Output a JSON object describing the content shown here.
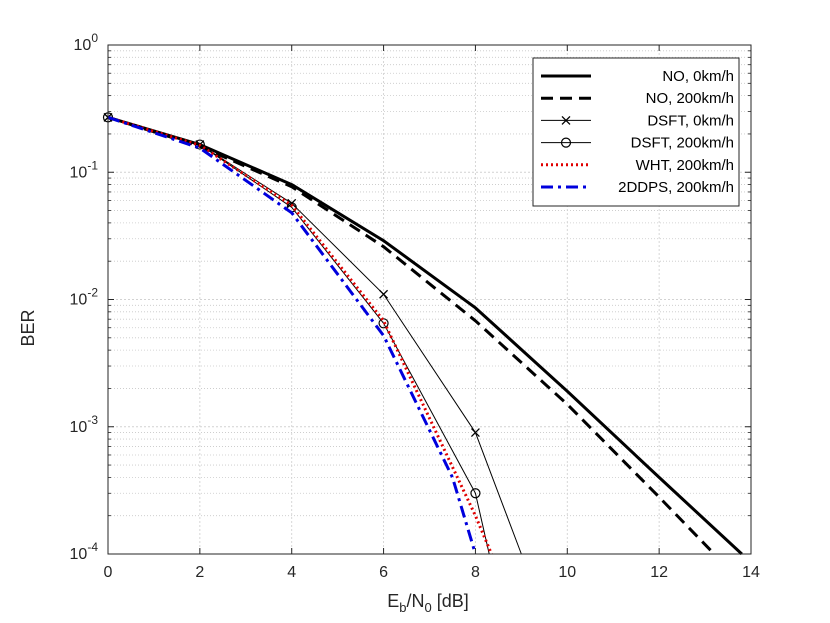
{
  "chart_data": {
    "type": "line",
    "yscale": "log",
    "xlabel": "E_b/N_0 [dB]",
    "xlabel_parts": {
      "e": "E",
      "b": "b",
      "slash_n": "/N",
      "zero": "0",
      "unit": " [dB]"
    },
    "ylabel": "BER",
    "xlim": [
      0,
      14
    ],
    "ylim": [
      0.0001,
      1
    ],
    "xticks": [
      0,
      2,
      4,
      6,
      8,
      10,
      12,
      14
    ],
    "xtick_labels": [
      "0",
      "2",
      "4",
      "6",
      "8",
      "10",
      "12",
      "14"
    ],
    "yticks": [
      1,
      0.1,
      0.01,
      0.001,
      0.0001
    ],
    "ytick_labels": [
      {
        "base": "10",
        "exp": "0"
      },
      {
        "base": "10",
        "exp": "-1"
      },
      {
        "base": "10",
        "exp": "-2"
      },
      {
        "base": "10",
        "exp": "-3"
      },
      {
        "base": "10",
        "exp": "-4"
      }
    ],
    "grid": true,
    "legend_position": "top-right",
    "series": [
      {
        "name": "NO, 0km/h",
        "color": "#000000",
        "style": "solid",
        "width": "thick",
        "marker": "none",
        "x": [
          0,
          2,
          4,
          6,
          8,
          10,
          12,
          13.8
        ],
        "y": [
          0.27,
          0.165,
          0.08,
          0.029,
          0.0086,
          0.0019,
          0.0004,
          0.0001
        ]
      },
      {
        "name": "NO, 200km/h",
        "color": "#000000",
        "style": "dashed",
        "width": "thick",
        "marker": "none",
        "x": [
          0,
          2,
          4,
          6,
          8,
          10,
          12,
          13.2
        ],
        "y": [
          0.27,
          0.16,
          0.077,
          0.026,
          0.0068,
          0.0015,
          0.00028,
          0.0001
        ]
      },
      {
        "name": "DSFT, 0km/h",
        "color": "#000000",
        "style": "solid",
        "width": "thin",
        "marker": "x",
        "x": [
          0,
          2,
          4,
          6,
          8,
          9
        ],
        "y": [
          0.27,
          0.165,
          0.057,
          0.011,
          0.0009,
          0.0001
        ]
      },
      {
        "name": "DSFT, 200km/h",
        "color": "#000000",
        "style": "solid",
        "width": "thin",
        "marker": "o",
        "x": [
          0,
          2,
          4,
          6,
          8,
          8.3
        ],
        "y": [
          0.27,
          0.165,
          0.053,
          0.0065,
          0.0003,
          0.0001
        ]
      },
      {
        "name": "WHT, 200km/h",
        "color": "#e00000",
        "style": "dotted",
        "width": "thick",
        "marker": "none",
        "x": [
          0,
          2,
          4,
          6,
          8,
          8.35
        ],
        "y": [
          0.27,
          0.163,
          0.055,
          0.0068,
          0.0002,
          0.0001
        ]
      },
      {
        "name": "2DDPS, 200km/h",
        "color": "#0000dd",
        "style": "dashdot",
        "width": "thick",
        "marker": "none",
        "x": [
          0,
          2,
          4,
          6,
          7.5,
          8
        ],
        "y": [
          0.27,
          0.155,
          0.048,
          0.0052,
          0.0004,
          0.0001
        ]
      }
    ]
  }
}
